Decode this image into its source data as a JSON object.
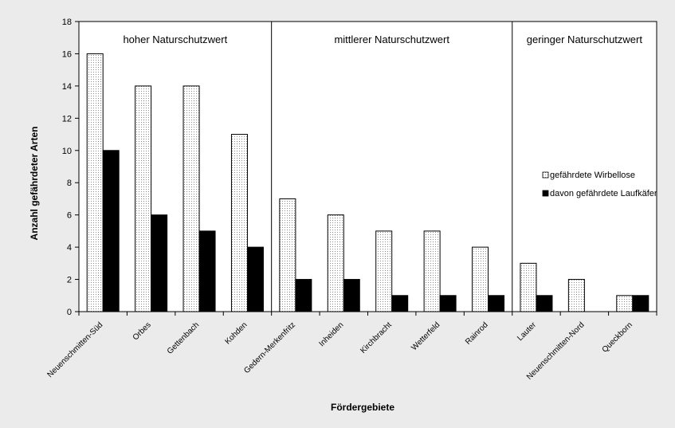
{
  "chart_data": {
    "type": "bar",
    "xlabel": "Fördergebiete",
    "ylabel": "Anzahl gefährdeter Arten",
    "ylim": [
      0,
      18
    ],
    "yticks": [
      0,
      2,
      4,
      6,
      8,
      10,
      12,
      14,
      16,
      18
    ],
    "grid": false,
    "legend_position": "right",
    "categories": [
      "Neuenschmitten-Süd",
      "Orbes",
      "Gettenbach",
      "Kohden",
      "Gedern-Merkenfritz",
      "Inheiden",
      "Kirchbracht",
      "Wetterfeld",
      "Rainrod",
      "Lauter",
      "Neuenschmitten-Nord",
      "Queckborn"
    ],
    "series": [
      {
        "name": "gefährdete Wirbellose",
        "pattern": "dotted",
        "color": "#ffffff",
        "values": [
          16,
          14,
          14,
          11,
          7,
          6,
          5,
          5,
          4,
          3,
          2,
          1
        ]
      },
      {
        "name": "davon gefährdete Laufkäfer",
        "pattern": "solid",
        "color": "#000000",
        "values": [
          10,
          6,
          5,
          4,
          2,
          2,
          1,
          1,
          1,
          1,
          0,
          1
        ]
      }
    ],
    "groups": [
      {
        "label": "hoher Naturschutzwert",
        "categories": 4
      },
      {
        "label": "mittlerer Naturschutzwert",
        "categories": 5
      },
      {
        "label": "geringer Naturschutzwert",
        "categories": 3
      }
    ]
  }
}
